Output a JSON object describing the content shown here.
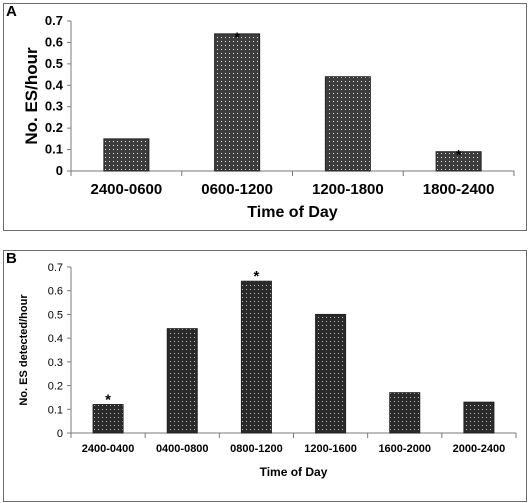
{
  "chart_data": [
    {
      "panel": "A",
      "type": "bar",
      "categories": [
        "2400-0600",
        "0600-1200",
        "1200-1800",
        "1800-2400"
      ],
      "values": [
        0.15,
        0.64,
        0.44,
        0.09
      ],
      "significant": [
        false,
        true,
        false,
        true
      ],
      "significance_marker": "*",
      "xlabel": "Time of Day",
      "ylabel": "No. ES/hour",
      "ylim": [
        0,
        0.7
      ],
      "yticks": [
        "0",
        "0.1",
        "0.2",
        "0.3",
        "0.4",
        "0.5",
        "0.6",
        "0.7"
      ],
      "grid": false,
      "bar_fill": "dotted",
      "bar_color": "#3c3c3c"
    },
    {
      "panel": "B",
      "type": "bar",
      "categories": [
        "2400-0400",
        "0400-0800",
        "0800-1200",
        "1200-1600",
        "1600-2000",
        "2000-2400"
      ],
      "values": [
        0.12,
        0.44,
        0.64,
        0.5,
        0.17,
        0.13
      ],
      "significant": [
        true,
        false,
        true,
        false,
        false,
        false
      ],
      "significance_marker": "*",
      "xlabel": "Time of Day",
      "ylabel": "No. ES detected/hour",
      "ylim": [
        0,
        0.7
      ],
      "yticks": [
        "0",
        "0.1",
        "0.2",
        "0.3",
        "0.4",
        "0.5",
        "0.6",
        "0.7"
      ],
      "grid": false,
      "bar_fill": "dotted",
      "bar_color": "#2a2a2a"
    }
  ]
}
